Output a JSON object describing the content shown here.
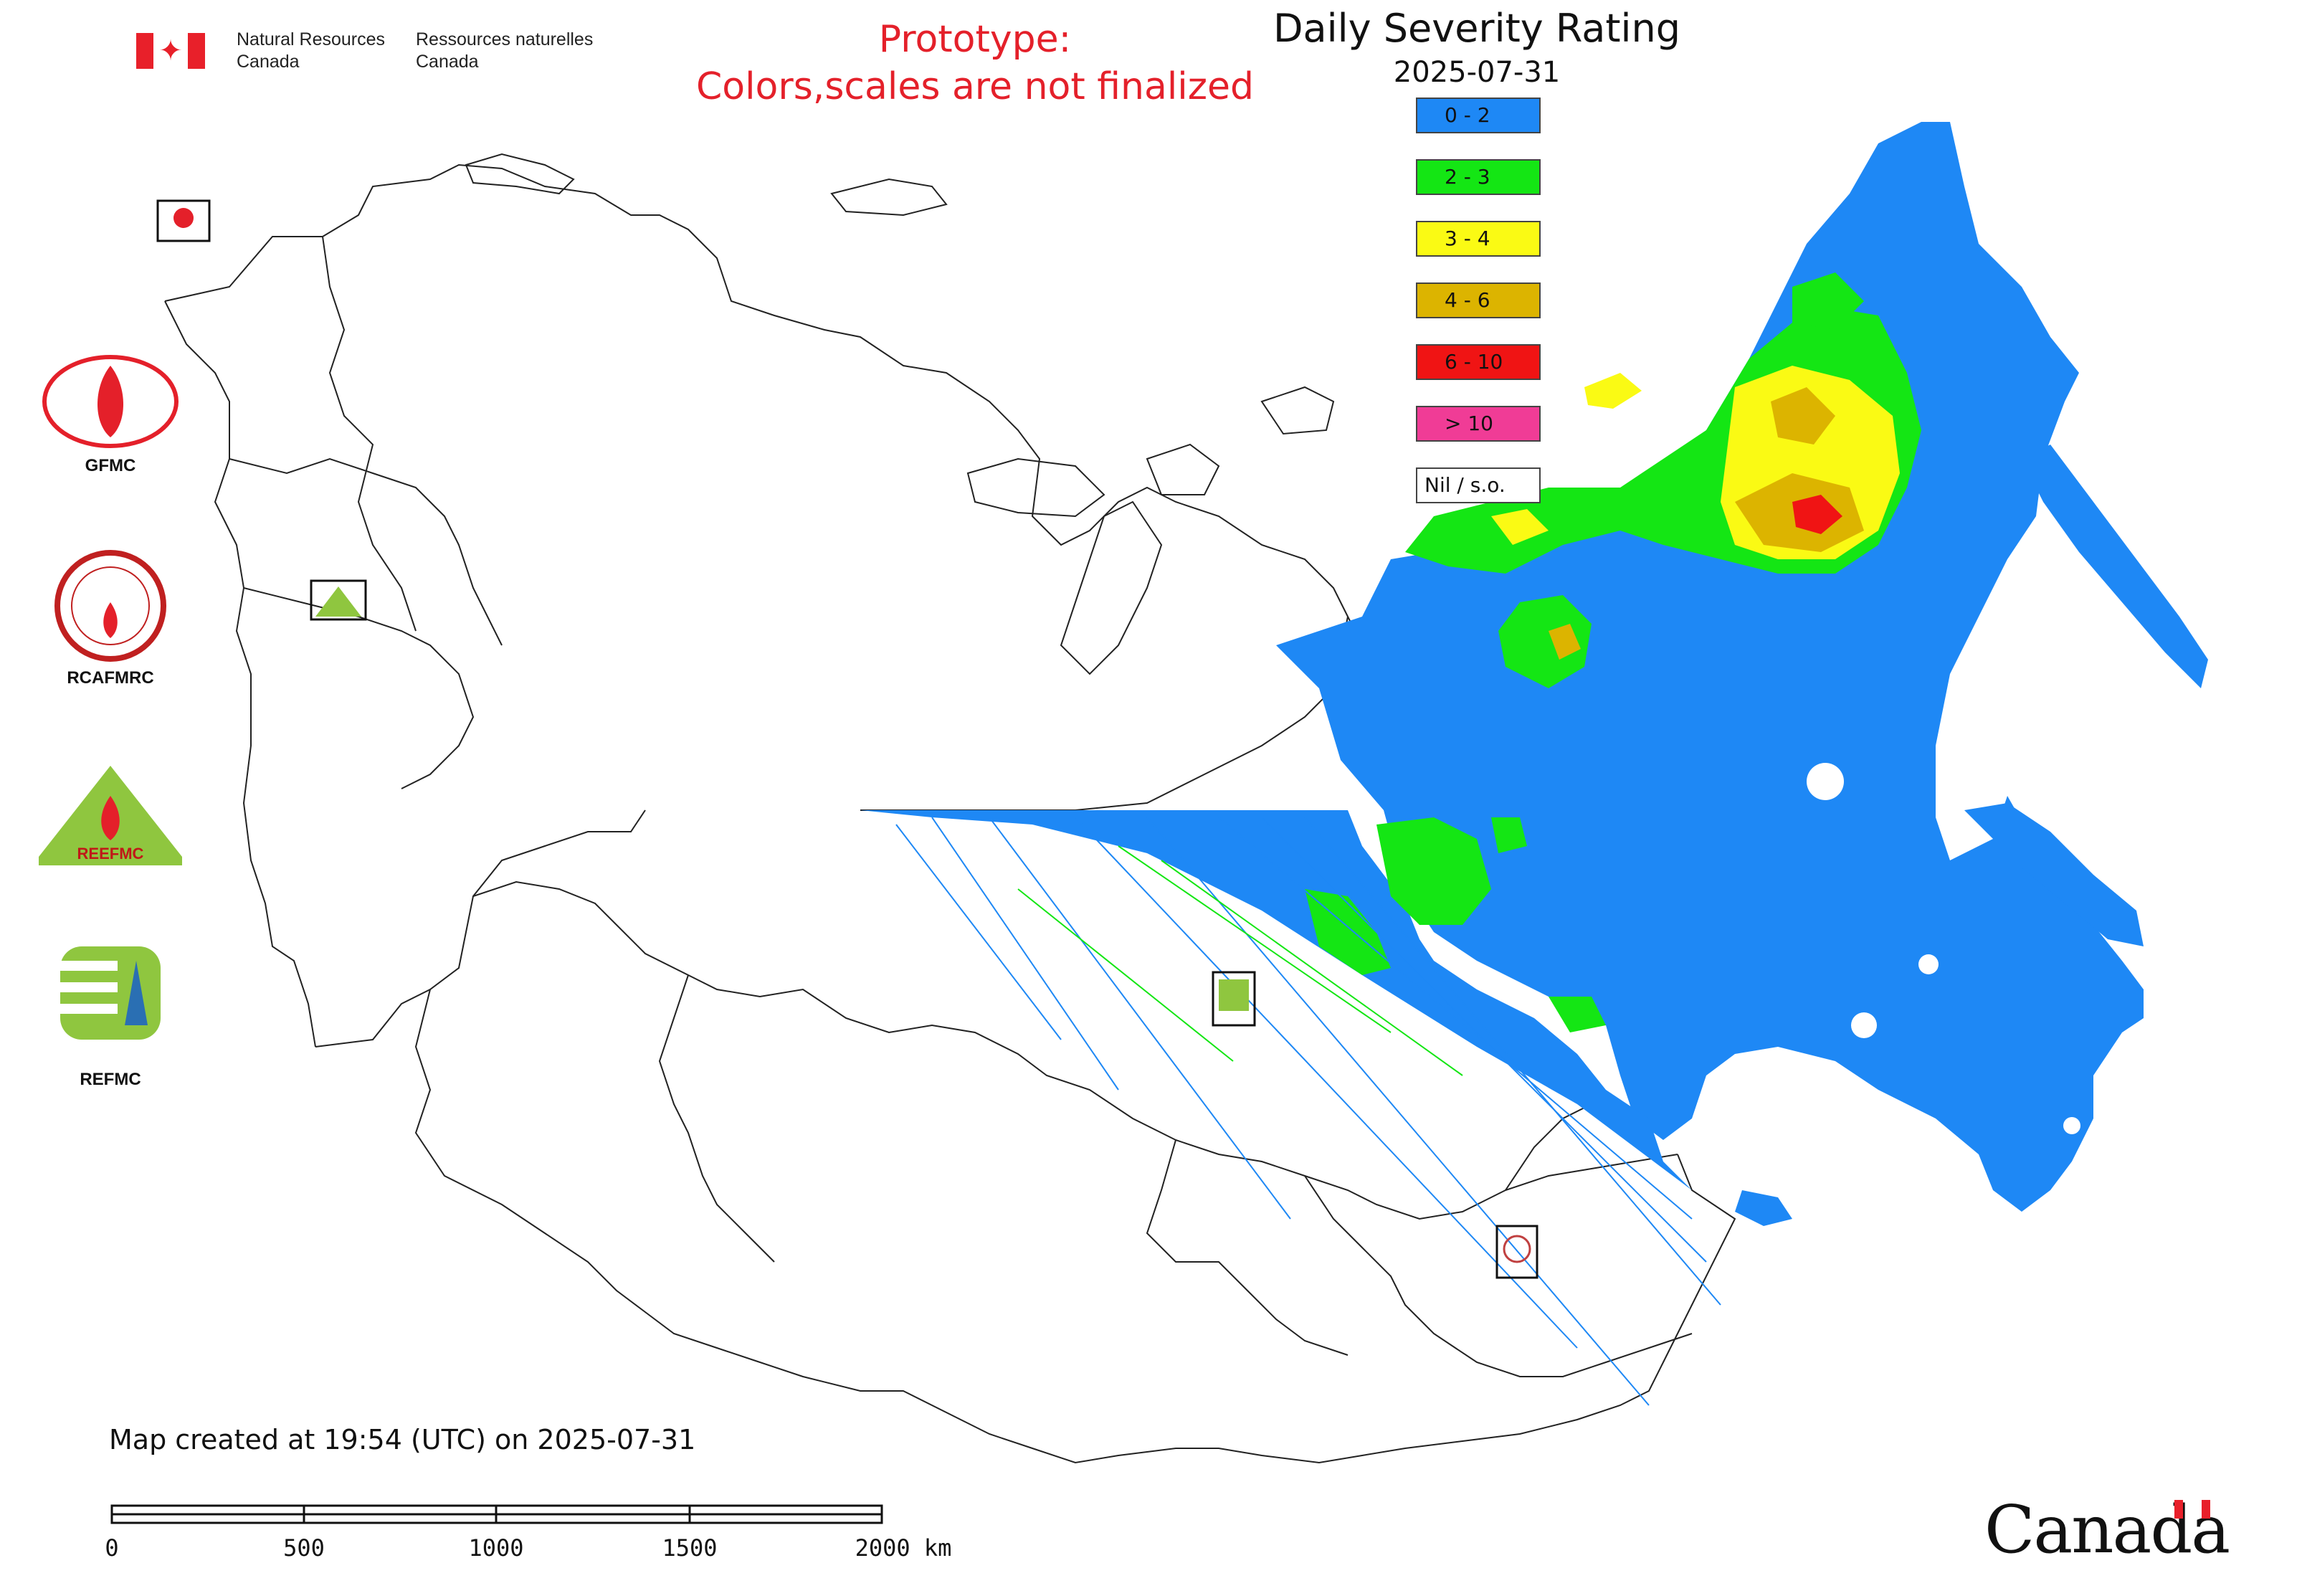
{
  "header": {
    "agency_en": "Natural Resources\nCanada",
    "agency_fr": "Ressources naturelles\nCanada",
    "prototype_note": "Prototype:\nColors,scales are not finalized"
  },
  "legend": {
    "title": "Daily Severity Rating",
    "date": "2025-07-31",
    "classes": [
      {
        "label": "0 - 2",
        "color": "#1e88f5"
      },
      {
        "label": "2 - 3",
        "color": "#14e614"
      },
      {
        "label": "3 - 4",
        "color": "#fafa14"
      },
      {
        "label": "4 - 6",
        "color": "#dcb400"
      },
      {
        "label": "6 - 10",
        "color": "#f01414"
      },
      {
        "label": "> 10",
        "color": "#f03c96"
      },
      {
        "label": "Nil / s.o.",
        "color": "#ffffff"
      }
    ]
  },
  "organizations": [
    {
      "label": "GFMC",
      "icon": "gfmc-logo-icon"
    },
    {
      "label": "RCAFMRC",
      "icon": "rcafmrc-logo-icon"
    },
    {
      "label": "REEFMC",
      "icon": "reefmc-logo-icon"
    },
    {
      "label": "REFMC",
      "icon": "refmc-logo-icon"
    }
  ],
  "footer": {
    "created": "Map created at 19:54 (UTC) on 2025-07-31"
  },
  "scale_bar": {
    "ticks": [
      "0",
      "500",
      "1000",
      "1500",
      "2000 km"
    ]
  },
  "wordmark": "Canada",
  "colors": {
    "border_line": "#222222",
    "prototype_text": "#e4202a"
  }
}
